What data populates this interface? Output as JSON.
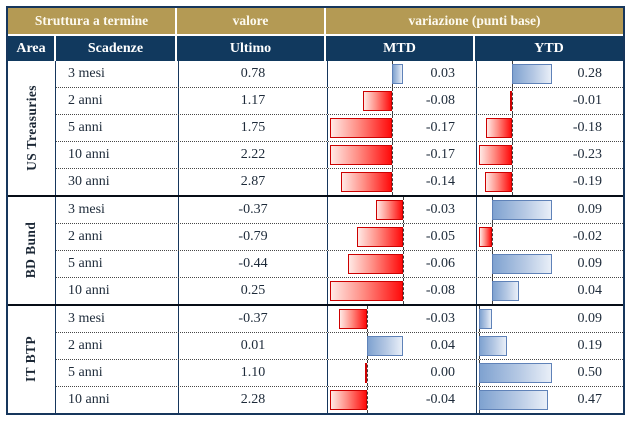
{
  "header": {
    "group_left": "Struttura a termine",
    "group_mid": "valore",
    "group_right": "variazione (punti base)",
    "area": "Area",
    "scadenze": "Scadenze",
    "ultimo": "Ultimo",
    "mtd": "MTD",
    "ytd": "YTD"
  },
  "colors": {
    "header_gold": "#b49a54",
    "header_navy": "#11395e",
    "negative_bar_red": "#ff0000",
    "negative_bar_border": "#cc0000",
    "positive_bar_blue": "#7fa2d0",
    "positive_bar_border": "#5f82b8",
    "text": "#1d2a39"
  },
  "chart_data": {
    "type": "table",
    "title": "Struttura a termine",
    "columns": [
      "Area",
      "Scadenze",
      "Ultimo",
      "MTD",
      "YTD"
    ],
    "value_unit_note": "variazione (punti base)",
    "bar_columns": [
      "MTD",
      "YTD"
    ],
    "bar_scaling": "per-group min/max with dashed zero axis; negative bars red, positive bars blue",
    "groups": [
      {
        "area": "US Treasuries",
        "rows": [
          {
            "scadenza": "3 mesi",
            "ultimo": 0.78,
            "mtd": 0.03,
            "ytd": 0.28
          },
          {
            "scadenza": "2 anni",
            "ultimo": 1.17,
            "mtd": -0.08,
            "ytd": -0.01
          },
          {
            "scadenza": "5 anni",
            "ultimo": 1.75,
            "mtd": -0.17,
            "ytd": -0.18
          },
          {
            "scadenza": "10 anni",
            "ultimo": 2.22,
            "mtd": -0.17,
            "ytd": -0.23
          },
          {
            "scadenza": "30 anni",
            "ultimo": 2.87,
            "mtd": -0.14,
            "ytd": -0.19
          }
        ]
      },
      {
        "area": "BD Bund",
        "rows": [
          {
            "scadenza": "3 mesi",
            "ultimo": -0.37,
            "mtd": -0.03,
            "ytd": 0.09
          },
          {
            "scadenza": "2 anni",
            "ultimo": -0.79,
            "mtd": -0.05,
            "ytd": -0.02
          },
          {
            "scadenza": "5 anni",
            "ultimo": -0.44,
            "mtd": -0.06,
            "ytd": 0.09
          },
          {
            "scadenza": "10 anni",
            "ultimo": 0.25,
            "mtd": -0.08,
            "ytd": 0.04
          }
        ]
      },
      {
        "area": "IT BTP",
        "rows": [
          {
            "scadenza": "3 mesi",
            "ultimo": -0.37,
            "mtd": -0.03,
            "ytd": 0.09
          },
          {
            "scadenza": "2 anni",
            "ultimo": 0.01,
            "mtd": 0.04,
            "ytd": 0.19
          },
          {
            "scadenza": "5 anni",
            "ultimo": 1.1,
            "mtd": 0.0,
            "ytd": 0.5
          },
          {
            "scadenza": "10 anni",
            "ultimo": 2.28,
            "mtd": -0.04,
            "ytd": 0.47
          }
        ]
      }
    ]
  }
}
